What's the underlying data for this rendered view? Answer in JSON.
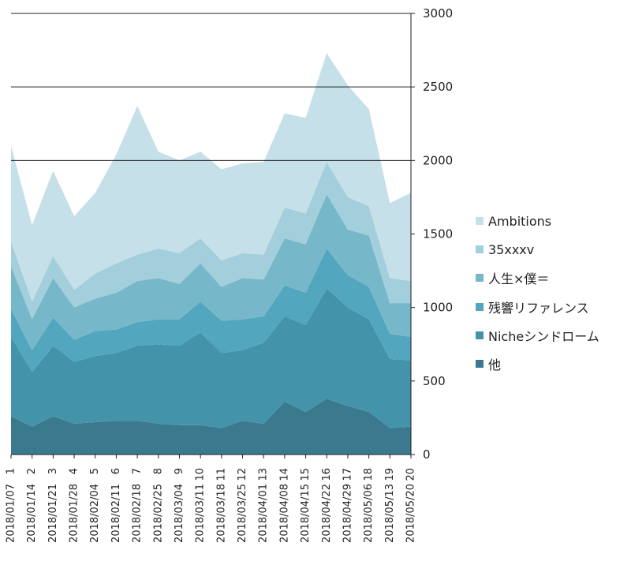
{
  "chart_data": {
    "type": "area",
    "stacked": true,
    "categories": [
      "1",
      "2",
      "3",
      "4",
      "5",
      "6",
      "7",
      "8",
      "9",
      "10",
      "11",
      "12",
      "13",
      "14",
      "15",
      "16",
      "17",
      "18",
      "19",
      "20"
    ],
    "date_labels": [
      "2018/01/07",
      "2018/01/14",
      "2018/01/21",
      "2018/01/28",
      "2018/02/04",
      "2018/02/11",
      "2018/02/18",
      "2018/02/25",
      "2018/03/04",
      "2018/03/11",
      "2018/03/18",
      "2018/03/25",
      "2018/04/01",
      "2018/04/08",
      "2018/04/15",
      "2018/04/22",
      "2018/04/29",
      "2018/05/06",
      "2018/05/13",
      "2018/05/20"
    ],
    "y_ticks": [
      "0",
      "500",
      "1000",
      "1500",
      "2000",
      "2500",
      "3000"
    ],
    "ylim": [
      0,
      3000
    ],
    "y_axis_side": "right",
    "gridlines": [
      2000,
      2500,
      3000
    ],
    "legend_position": "right",
    "series": [
      {
        "name": "他",
        "color": "#3b7a8e",
        "values": [
          260,
          190,
          260,
          210,
          220,
          230,
          230,
          210,
          200,
          200,
          180,
          230,
          210,
          360,
          290,
          380,
          330,
          290,
          180,
          190
        ]
      },
      {
        "name": "Nicheシンドローム",
        "color": "#4393ab",
        "values": [
          540,
          370,
          480,
          420,
          450,
          460,
          510,
          540,
          540,
          630,
          510,
          480,
          550,
          580,
          590,
          750,
          670,
          630,
          470,
          450
        ]
      },
      {
        "name": "残響リファレンス",
        "color": "#52a6bd",
        "values": [
          190,
          150,
          190,
          150,
          170,
          160,
          160,
          170,
          180,
          210,
          220,
          210,
          180,
          210,
          220,
          270,
          220,
          220,
          170,
          160
        ]
      },
      {
        "name": "人生×僕＝",
        "color": "#76b8ca",
        "values": [
          290,
          210,
          270,
          220,
          220,
          250,
          280,
          280,
          240,
          260,
          230,
          280,
          250,
          320,
          330,
          370,
          310,
          350,
          210,
          230
        ]
      },
      {
        "name": "35xxxv",
        "color": "#a3cfdc",
        "values": [
          170,
          120,
          150,
          120,
          170,
          200,
          180,
          200,
          210,
          170,
          180,
          170,
          170,
          210,
          210,
          220,
          220,
          200,
          170,
          150
        ]
      },
      {
        "name": "Ambitions",
        "color": "#c5e0e8",
        "values": [
          650,
          520,
          580,
          500,
          550,
          740,
          1010,
          660,
          630,
          590,
          620,
          610,
          630,
          640,
          650,
          740,
          760,
          660,
          510,
          600
        ]
      }
    ]
  }
}
